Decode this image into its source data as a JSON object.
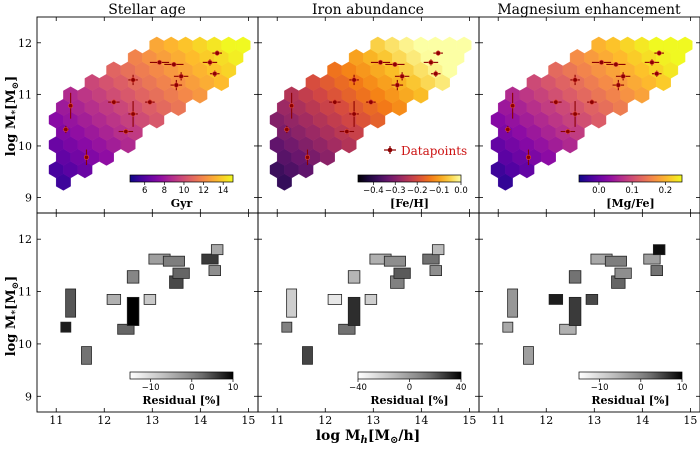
{
  "figure": {
    "ylabel": "log M",
    "ylabel_sub": "*",
    "ylabel_unit": "[M",
    "ylabel_sun": "⊙",
    "ylabel_close": "]",
    "xlabel": "log M",
    "xlabel_sub": "h",
    "xlabel_unit": "[M",
    "xlabel_sun": "⊙",
    "xlabel_close": "/h]",
    "legend_label": "Datapoints",
    "legend_color": "#cc1111"
  },
  "chart_data": [
    {
      "type": "heatmap",
      "title": "Stellar age",
      "panel": "top-left",
      "colormap": "plasma",
      "colorbar": {
        "label": "Gyr",
        "ticks": [
          "6",
          "8",
          "10",
          "12",
          "14"
        ],
        "range": [
          4.5,
          15
        ]
      },
      "xlim": [
        10.6,
        15.2
      ],
      "ylim": [
        8.7,
        12.5
      ],
      "yticks": [
        "9",
        "10",
        "11",
        "12"
      ]
    },
    {
      "type": "heatmap",
      "title": "Iron abundance",
      "panel": "top-middle",
      "colormap": "inferno",
      "colorbar": {
        "label": "[Fe/H]",
        "ticks": [
          "−0.4",
          "−0.3",
          "−0.2",
          "−0.1",
          "0.0"
        ],
        "range": [
          -0.47,
          0.0
        ]
      },
      "xlim": [
        10.6,
        15.2
      ],
      "ylim": [
        8.7,
        12.5
      ]
    },
    {
      "type": "heatmap",
      "title": "Magnesium enhancement",
      "panel": "top-right",
      "colormap": "plasma",
      "colorbar": {
        "label": "[Mg/Fe]",
        "ticks": [
          "0.0",
          "0.1",
          "0.2"
        ],
        "range": [
          -0.06,
          0.25
        ]
      },
      "xlim": [
        10.6,
        15.2
      ],
      "ylim": [
        8.7,
        12.5
      ]
    },
    {
      "type": "heatmap",
      "title": "",
      "panel": "bottom-left",
      "colormap": "greys",
      "colorbar": {
        "label": "Residual [%]",
        "ticks": [
          "−10",
          "0",
          "10"
        ],
        "range": [
          -15,
          10
        ]
      },
      "xticks": [
        "11",
        "12",
        "13",
        "14",
        "15"
      ],
      "yticks": [
        "9",
        "10",
        "11",
        "12"
      ],
      "xlim": [
        10.6,
        15.2
      ],
      "ylim": [
        8.7,
        12.5
      ]
    },
    {
      "type": "heatmap",
      "title": "",
      "panel": "bottom-middle",
      "colormap": "greys",
      "colorbar": {
        "label": "Residual [%]",
        "ticks": [
          "−40",
          "0",
          "40"
        ],
        "range": [
          -40,
          40
        ]
      },
      "xticks": [
        "11",
        "12",
        "13",
        "14",
        "15"
      ],
      "xlim": [
        10.6,
        15.2
      ],
      "ylim": [
        8.7,
        12.5
      ]
    },
    {
      "type": "heatmap",
      "title": "",
      "panel": "bottom-right",
      "colormap": "greys",
      "colorbar": {
        "label": "Residual [%]",
        "ticks": [
          "−10",
          "0",
          "10"
        ],
        "range": [
          -15,
          10
        ]
      },
      "xticks": [
        "11",
        "12",
        "13",
        "14",
        "15"
      ],
      "xlim": [
        10.6,
        15.2
      ],
      "ylim": [
        8.7,
        12.5
      ]
    }
  ],
  "datapoints": [
    {
      "x": 11.3,
      "y": 10.78,
      "xerr": 0.05,
      "yerr": 0.25,
      "age": 7,
      "feh": -0.05,
      "mgfe": 0.12,
      "res": [
        4,
        -20,
        -2
      ]
    },
    {
      "x": 11.2,
      "y": 10.32,
      "xerr": 0.06,
      "yerr": 0.07,
      "age": 6,
      "feh": -0.15,
      "mgfe": 0.06,
      "res": [
        8,
        10,
        -4
      ]
    },
    {
      "x": 11.63,
      "y": 9.78,
      "xerr": 0.05,
      "yerr": 0.15,
      "age": 5,
      "feh": -0.28,
      "mgfe": 0.02,
      "res": [
        2,
        25,
        -3
      ]
    },
    {
      "x": 12.2,
      "y": 10.85,
      "xerr": 0.12,
      "yerr": 0.05,
      "age": 9,
      "feh": -0.08,
      "mgfe": 0.15,
      "res": [
        -5,
        -30,
        8
      ]
    },
    {
      "x": 12.45,
      "y": 10.28,
      "xerr": 0.15,
      "yerr": 0.05,
      "age": 8,
      "feh": -0.12,
      "mgfe": 0.1,
      "res": [
        3,
        15,
        -5
      ]
    },
    {
      "x": 12.6,
      "y": 10.62,
      "xerr": 0.1,
      "yerr": 0.25,
      "age": 9,
      "feh": -0.06,
      "mgfe": 0.13,
      "res": [
        10,
        30,
        6
      ]
    },
    {
      "x": 12.6,
      "y": 11.28,
      "xerr": 0.1,
      "yerr": 0.1,
      "age": 11,
      "feh": -0.04,
      "mgfe": 0.17,
      "res": [
        0,
        -10,
        2
      ]
    },
    {
      "x": 12.95,
      "y": 10.85,
      "xerr": 0.1,
      "yerr": 0.05,
      "age": 10,
      "feh": -0.06,
      "mgfe": 0.14,
      "res": [
        -8,
        -20,
        5
      ]
    },
    {
      "x": 13.15,
      "y": 11.62,
      "xerr": 0.2,
      "yerr": 0.04,
      "age": 13,
      "feh": -0.02,
      "mgfe": 0.2,
      "res": [
        -3,
        -8,
        -4
      ]
    },
    {
      "x": 13.45,
      "y": 11.58,
      "xerr": 0.2,
      "yerr": 0.04,
      "age": 13,
      "feh": -0.03,
      "mgfe": 0.19,
      "res": [
        1,
        5,
        1
      ]
    },
    {
      "x": 13.5,
      "y": 11.18,
      "xerr": 0.12,
      "yerr": 0.1,
      "age": 12,
      "feh": -0.03,
      "mgfe": 0.18,
      "res": [
        5,
        10,
        3
      ]
    },
    {
      "x": 13.6,
      "y": 11.35,
      "xerr": 0.15,
      "yerr": 0.08,
      "age": 12,
      "feh": -0.02,
      "mgfe": 0.19,
      "res": [
        3,
        20,
        -1
      ]
    },
    {
      "x": 14.2,
      "y": 11.62,
      "xerr": 0.15,
      "yerr": 0.06,
      "age": 14,
      "feh": -0.01,
      "mgfe": 0.21,
      "res": [
        6,
        15,
        -3
      ]
    },
    {
      "x": 14.3,
      "y": 11.4,
      "xerr": 0.1,
      "yerr": 0.06,
      "age": 14,
      "feh": -0.02,
      "mgfe": 0.2,
      "res": [
        -1,
        5,
        2
      ]
    },
    {
      "x": 14.35,
      "y": 11.8,
      "xerr": 0.1,
      "yerr": 0.05,
      "age": 15,
      "feh": 0.0,
      "mgfe": 0.22,
      "res": [
        -4,
        -12,
        9
      ]
    }
  ]
}
